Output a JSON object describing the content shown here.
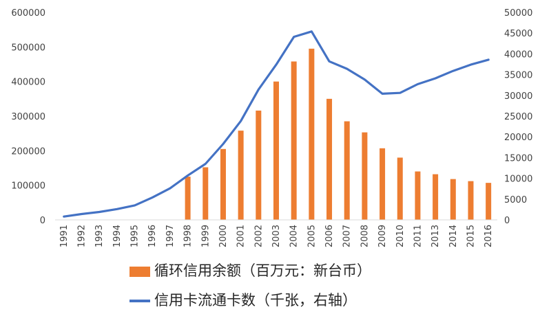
{
  "chart_data": {
    "type": "bar+line",
    "categories": [
      "1991",
      "1992",
      "1993",
      "1994",
      "1995",
      "1996",
      "1997",
      "1998",
      "1999",
      "2000",
      "2001",
      "2002",
      "2003",
      "2004",
      "2005",
      "2006",
      "2007",
      "2008",
      "2009",
      "2010",
      "2011",
      "2013",
      "2014",
      "2015",
      "2016"
    ],
    "series": [
      {
        "name": "循环信用余额（百万元：新台币）",
        "type": "bar",
        "axis": "left",
        "color": "#ED7D31",
        "values": [
          null,
          null,
          null,
          null,
          null,
          null,
          null,
          125000,
          152000,
          205000,
          258000,
          316000,
          400000,
          458000,
          495000,
          350000,
          285000,
          253000,
          207000,
          180000,
          140000,
          132000,
          118000,
          112000,
          107000
        ]
      },
      {
        "name": "信用卡流通卡数（千张，右轴）",
        "type": "line",
        "axis": "right",
        "color": "#4472C4",
        "values": [
          800,
          1400,
          1900,
          2600,
          3500,
          5400,
          7600,
          10700,
          13500,
          18300,
          23800,
          31400,
          37400,
          44100,
          45400,
          38200,
          36400,
          33800,
          30400,
          30600,
          32700,
          34100,
          35900,
          37400,
          38600
        ]
      }
    ],
    "y_left": {
      "min": 0,
      "max": 600000,
      "ticks": [
        "0",
        "100000",
        "200000",
        "300000",
        "400000",
        "500000",
        "600000"
      ]
    },
    "y_right": {
      "min": 0,
      "max": 50000,
      "ticks": [
        "0",
        "5000",
        "10000",
        "15000",
        "20000",
        "25000",
        "30000",
        "35000",
        "40000",
        "45000",
        "50000"
      ]
    },
    "grid": false,
    "legend_position": "bottom"
  }
}
